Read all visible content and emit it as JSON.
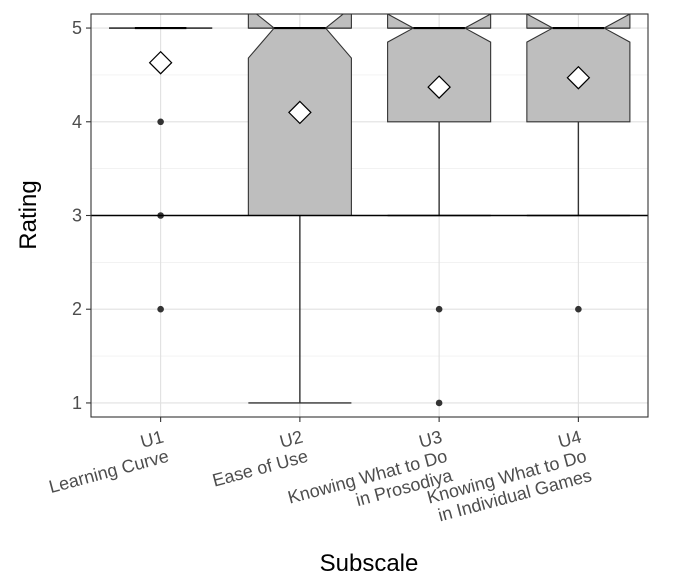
{
  "chart_data": {
    "type": "boxplot",
    "xlabel": "Subscale",
    "ylabel": "Rating",
    "ylim": [
      0.85,
      5.15
    ],
    "yticks": [
      1,
      2,
      3,
      4,
      5
    ],
    "reference_line_y": 3,
    "grid": true,
    "notched": true,
    "colors": {
      "box_fill": "#bebebe",
      "box_stroke": "#333333",
      "outlier": "#333333",
      "grid": "#ebebeb",
      "grid_major": "#e0e0e0",
      "reference_line": "#000000",
      "panel_border": "#333333"
    },
    "categories": [
      {
        "label_lines": [
          "U1",
          "Learning Curve"
        ],
        "q1": 5,
        "median": 5,
        "q3": 5,
        "notch_low": 5,
        "notch_high": 5,
        "whisker_low": 5,
        "whisker_high": 5,
        "mean": 4.63,
        "outliers": [
          4,
          3,
          2
        ]
      },
      {
        "label_lines": [
          "U2",
          "Ease of Use"
        ],
        "q1": 3,
        "median": 5,
        "q3": 5,
        "notch_low": 4.68,
        "notch_high": 5.22,
        "whisker_low": 1,
        "whisker_high": 5,
        "mean": 4.1,
        "outliers": []
      },
      {
        "label_lines": [
          "U3",
          "Knowing What to Do",
          "in Prosodiya"
        ],
        "q1": 4,
        "median": 5,
        "q3": 5,
        "notch_low": 4.85,
        "notch_high": 5.15,
        "whisker_low": 3,
        "whisker_high": 5,
        "mean": 4.37,
        "outliers": [
          2,
          1
        ]
      },
      {
        "label_lines": [
          "U4",
          "Knowing What to Do",
          "in Individual Games"
        ],
        "q1": 4,
        "median": 5,
        "q3": 5,
        "notch_low": 4.85,
        "notch_high": 5.15,
        "whisker_low": 3,
        "whisker_high": 5,
        "mean": 4.47,
        "outliers": [
          2
        ]
      }
    ]
  }
}
